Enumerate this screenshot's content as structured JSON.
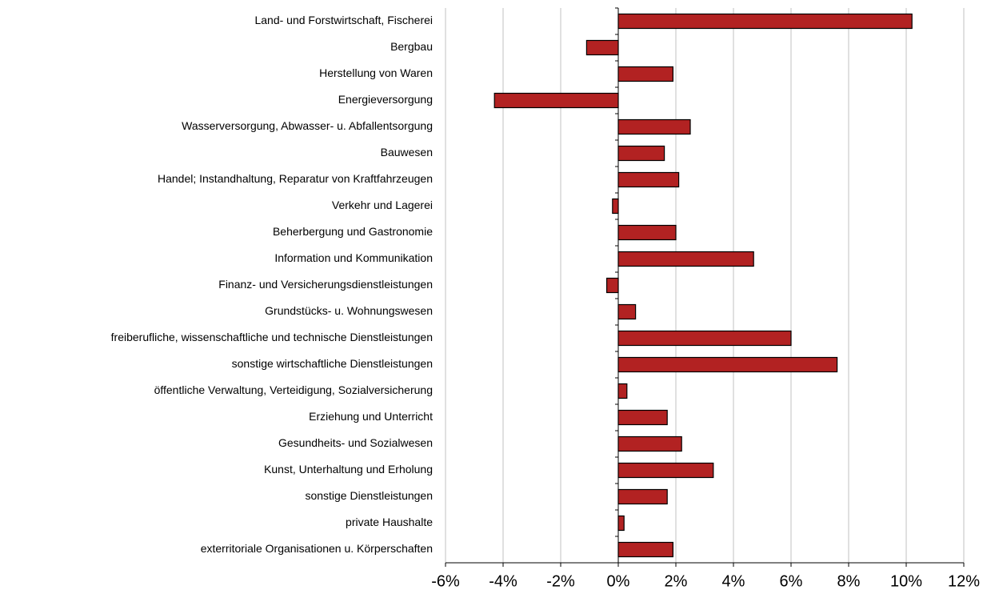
{
  "chart_data": {
    "type": "bar",
    "orientation": "horizontal",
    "categories": [
      "Land- und Forstwirtschaft, Fischerei",
      "Bergbau",
      "Herstellung von Waren",
      "Energieversorgung",
      "Wasserversorgung, Abwasser- u. Abfallentsorgung",
      "Bauwesen",
      "Handel; Instandhaltung, Reparatur von Kraftfahrzeugen",
      "Verkehr und Lagerei",
      "Beherbergung und Gastronomie",
      "Information und Kommunikation",
      "Finanz- und Versicherungsdienstleistungen",
      "Grundstücks- u. Wohnungswesen",
      "freiberufliche, wissenschaftliche und technische Dienstleistungen",
      "sonstige wirtschaftliche Dienstleistungen",
      "öffentliche Verwaltung, Verteidigung, Sozialversicherung",
      "Erziehung und Unterricht",
      "Gesundheits- und Sozialwesen",
      "Kunst, Unterhaltung und Erholung",
      "sonstige Dienstleistungen",
      "private Haushalte",
      "exterritoriale Organisationen u. Körperschaften"
    ],
    "values": [
      10.2,
      -1.1,
      1.9,
      -4.3,
      2.5,
      1.6,
      2.1,
      -0.2,
      2.0,
      4.7,
      -0.4,
      0.6,
      6.0,
      7.6,
      0.3,
      1.7,
      2.2,
      3.3,
      1.7,
      0.2,
      1.9
    ],
    "color": "#b22222",
    "xlim": [
      -6,
      12
    ],
    "xticks": [
      {
        "value": -6,
        "label": "-6%"
      },
      {
        "value": -4,
        "label": "-4%"
      },
      {
        "value": -2,
        "label": "-2%"
      },
      {
        "value": 0,
        "label": "0%"
      },
      {
        "value": 2,
        "label": "2%"
      },
      {
        "value": 4,
        "label": "4%"
      },
      {
        "value": 6,
        "label": "6%"
      },
      {
        "value": 8,
        "label": "8%"
      },
      {
        "value": 10,
        "label": "10%"
      },
      {
        "value": 12,
        "label": "12%"
      }
    ],
    "grid": true
  }
}
